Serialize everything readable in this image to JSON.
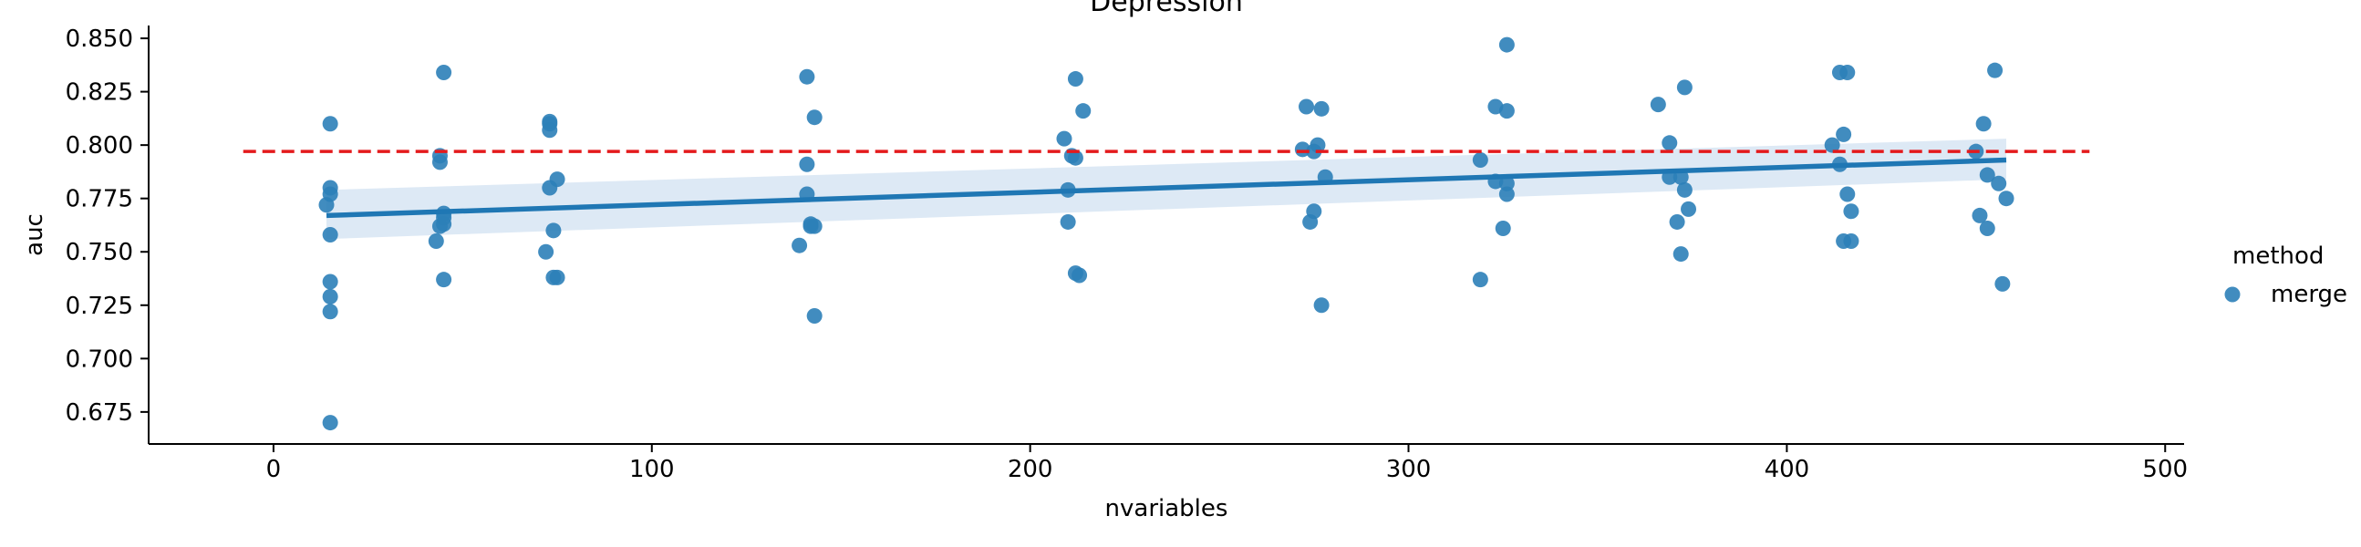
{
  "chart_data": {
    "type": "scatter",
    "title": "Depression",
    "xlabel": "nvariables",
    "ylabel": "auc",
    "xlim": [
      -33,
      505
    ],
    "ylim": [
      0.66,
      0.856
    ],
    "x_ticks": [
      0,
      100,
      200,
      300,
      400,
      500
    ],
    "y_ticks": [
      0.675,
      0.7,
      0.725,
      0.75,
      0.775,
      0.8,
      0.825,
      0.85
    ],
    "x_tick_labels": [
      "0",
      "100",
      "200",
      "300",
      "400",
      "500"
    ],
    "y_tick_labels": [
      "0.675",
      "0.700",
      "0.725",
      "0.750",
      "0.775",
      "0.800",
      "0.825",
      "0.850"
    ],
    "grid": false,
    "legend": {
      "title": "method",
      "placement": "right",
      "entries": [
        "merge"
      ]
    },
    "colors": {
      "points": "#2c7fb8",
      "regression": "#1f77b4",
      "band": "#c6dbef",
      "reference": "#e41a1c"
    },
    "series": [
      {
        "name": "merge",
        "points": [
          [
            15,
            0.81
          ],
          [
            15,
            0.78
          ],
          [
            15,
            0.777
          ],
          [
            14,
            0.772
          ],
          [
            15,
            0.758
          ],
          [
            15,
            0.736
          ],
          [
            15,
            0.729
          ],
          [
            15,
            0.722
          ],
          [
            15,
            0.67
          ],
          [
            45,
            0.834
          ],
          [
            44,
            0.795
          ],
          [
            44,
            0.792
          ],
          [
            45,
            0.768
          ],
          [
            45,
            0.766
          ],
          [
            45,
            0.763
          ],
          [
            44,
            0.762
          ],
          [
            43,
            0.755
          ],
          [
            45,
            0.737
          ],
          [
            73,
            0.811
          ],
          [
            73,
            0.81
          ],
          [
            73,
            0.807
          ],
          [
            75,
            0.784
          ],
          [
            73,
            0.78
          ],
          [
            74,
            0.76
          ],
          [
            72,
            0.75
          ],
          [
            74,
            0.738
          ],
          [
            75,
            0.738
          ],
          [
            141,
            0.832
          ],
          [
            143,
            0.813
          ],
          [
            141,
            0.791
          ],
          [
            141,
            0.777
          ],
          [
            142,
            0.763
          ],
          [
            143,
            0.762
          ],
          [
            142,
            0.762
          ],
          [
            139,
            0.753
          ],
          [
            143,
            0.72
          ],
          [
            212,
            0.831
          ],
          [
            214,
            0.816
          ],
          [
            209,
            0.803
          ],
          [
            211,
            0.795
          ],
          [
            212,
            0.794
          ],
          [
            210,
            0.779
          ],
          [
            210,
            0.764
          ],
          [
            212,
            0.74
          ],
          [
            213,
            0.739
          ],
          [
            273,
            0.818
          ],
          [
            277,
            0.817
          ],
          [
            272,
            0.798
          ],
          [
            276,
            0.8
          ],
          [
            275,
            0.797
          ],
          [
            278,
            0.785
          ],
          [
            275,
            0.769
          ],
          [
            274,
            0.764
          ],
          [
            277,
            0.725
          ],
          [
            326,
            0.847
          ],
          [
            323,
            0.818
          ],
          [
            326,
            0.816
          ],
          [
            319,
            0.793
          ],
          [
            323,
            0.783
          ],
          [
            326,
            0.782
          ],
          [
            326,
            0.777
          ],
          [
            325,
            0.761
          ],
          [
            319,
            0.737
          ],
          [
            373,
            0.827
          ],
          [
            366,
            0.819
          ],
          [
            369,
            0.801
          ],
          [
            369,
            0.785
          ],
          [
            372,
            0.785
          ],
          [
            373,
            0.779
          ],
          [
            374,
            0.77
          ],
          [
            371,
            0.764
          ],
          [
            372,
            0.749
          ],
          [
            414,
            0.834
          ],
          [
            416,
            0.834
          ],
          [
            415,
            0.805
          ],
          [
            412,
            0.8
          ],
          [
            414,
            0.791
          ],
          [
            416,
            0.777
          ],
          [
            417,
            0.769
          ],
          [
            415,
            0.755
          ],
          [
            417,
            0.755
          ],
          [
            455,
            0.835
          ],
          [
            452,
            0.81
          ],
          [
            450,
            0.797
          ],
          [
            453,
            0.786
          ],
          [
            456,
            0.782
          ],
          [
            458,
            0.775
          ],
          [
            451,
            0.767
          ],
          [
            453,
            0.761
          ],
          [
            457,
            0.735
          ]
        ]
      }
    ],
    "regression": {
      "x_range": [
        14,
        458
      ],
      "y_at_start": 0.767,
      "y_at_end": 0.793,
      "ci_lower": [
        0.756,
        0.784
      ],
      "ci_upper": [
        0.779,
        0.803
      ]
    },
    "reference_line": {
      "y": 0.797,
      "x_range": [
        -8,
        480
      ],
      "style": "dashed"
    }
  }
}
